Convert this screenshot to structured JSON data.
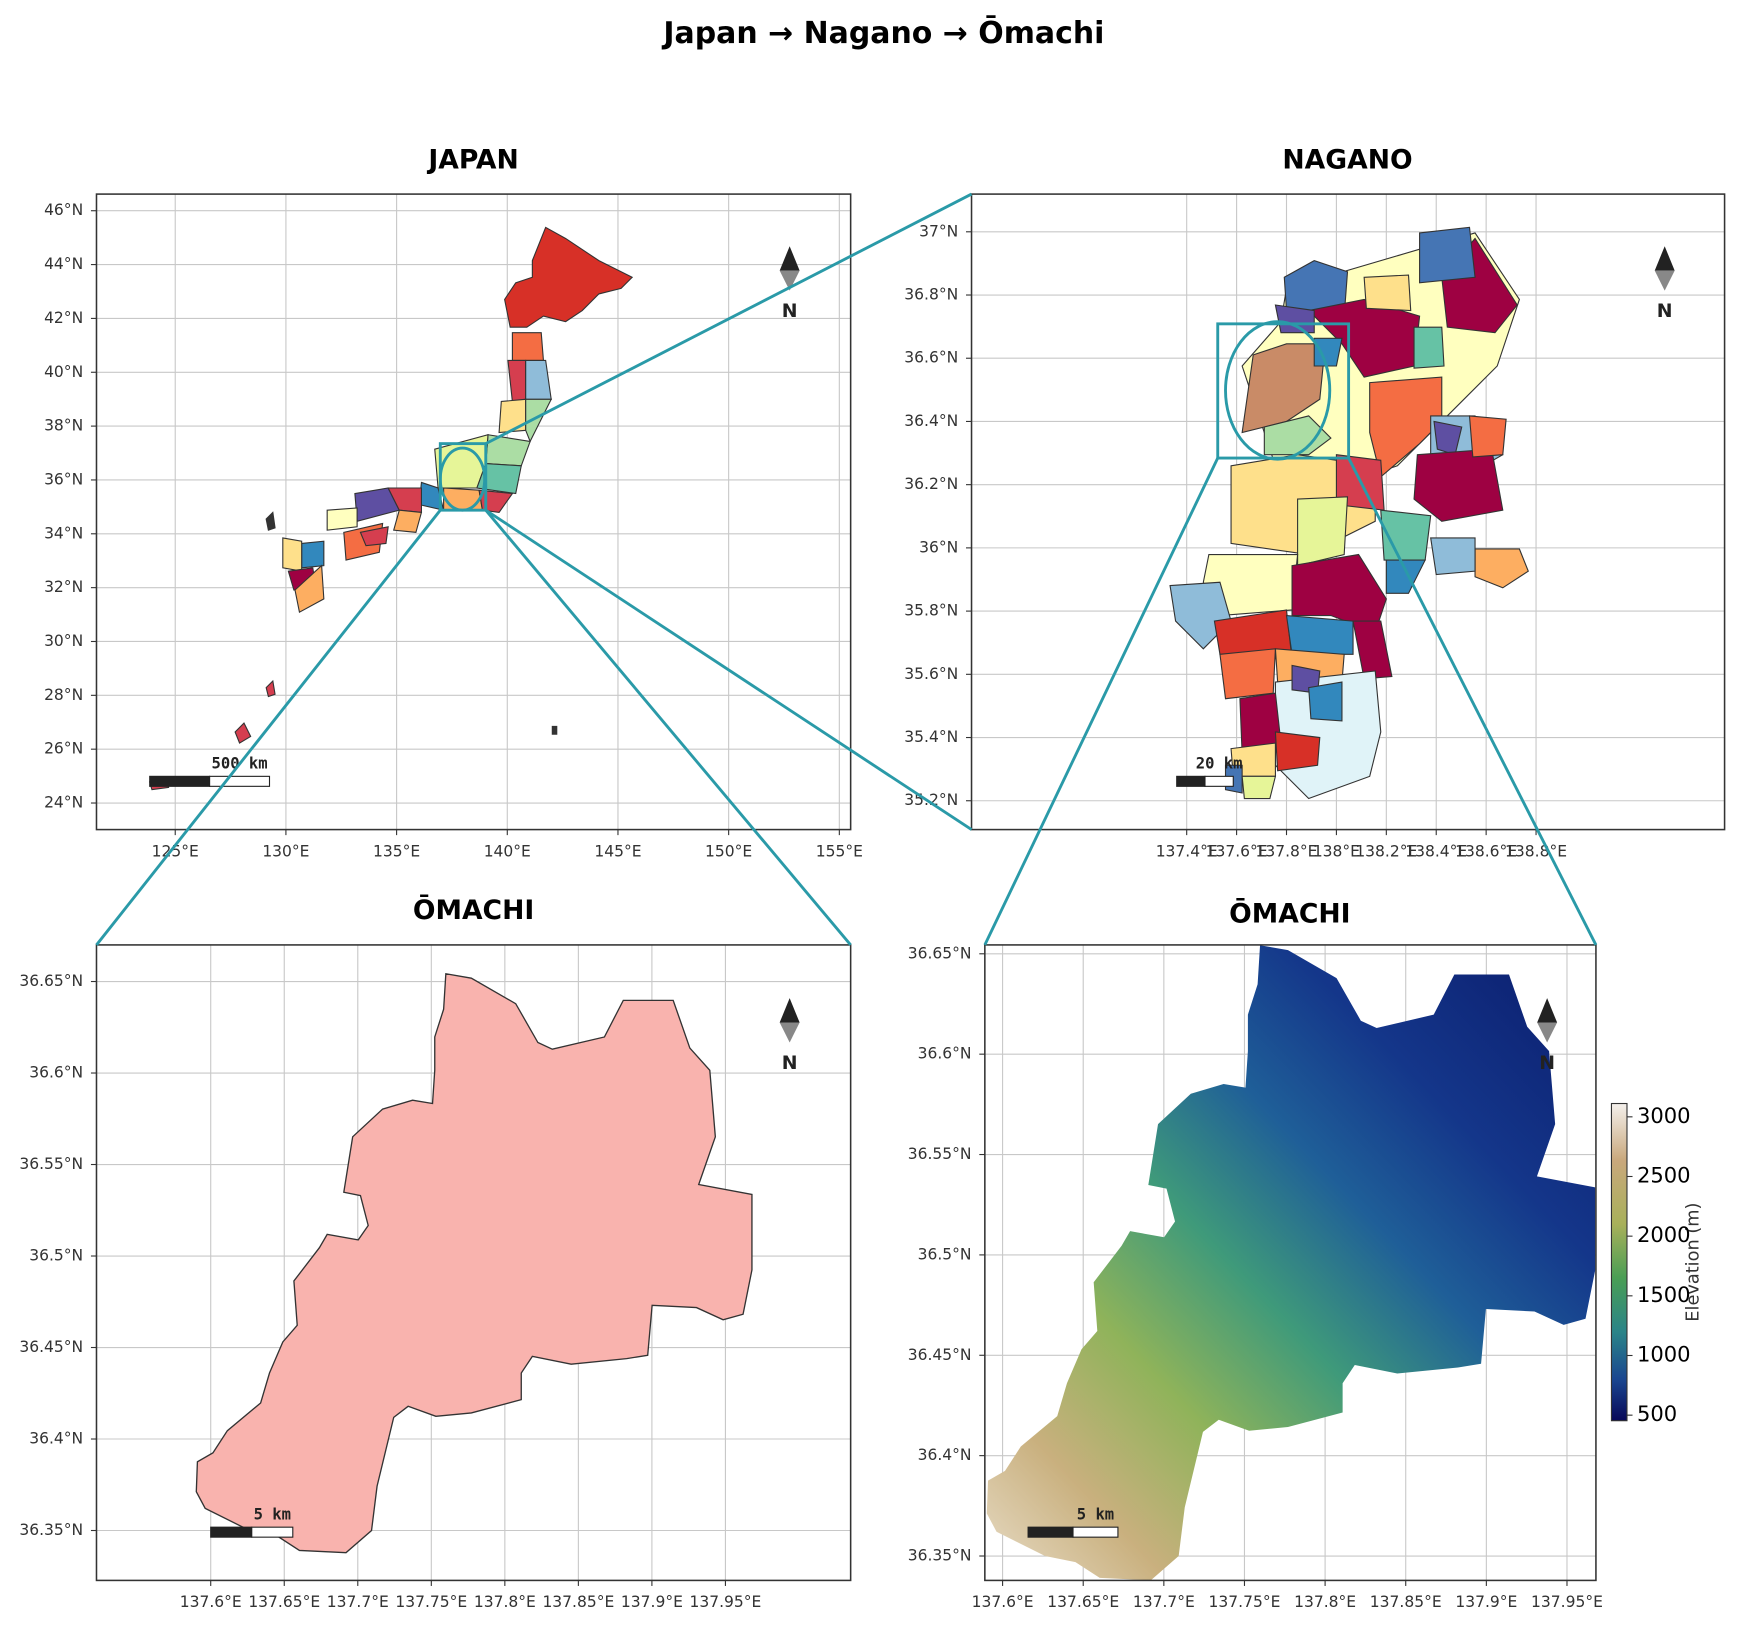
{
  "title": "Japan  →  Nagano  →  Ōmachi",
  "panels": [
    {
      "title": "JAPAN",
      "yticks": [
        "46°N",
        "44°N",
        "42°N",
        "40°N",
        "38°N",
        "36°N",
        "34°N",
        "32°N",
        "30°N",
        "28°N",
        "26°N",
        "24°N"
      ],
      "xticks": [
        "125°E",
        "130°E",
        "135°E",
        "140°E",
        "145°E",
        "150°E",
        "155°E"
      ],
      "scale_bar": "500 km",
      "north": "N"
    },
    {
      "title": "NAGANO",
      "yticks": [
        "37°N",
        "36.8°N",
        "36.6°N",
        "36.4°N",
        "36.2°N",
        "36°N",
        "35.8°N",
        "35.6°N",
        "35.4°N",
        "35.2°N"
      ],
      "xticks": [
        "137.4°E",
        "137.6°E",
        "137.8°E",
        "138°E",
        "138.2°E",
        "138.4°E",
        "138.6°E",
        "138.8°E"
      ],
      "scale_bar": "20 km",
      "north": "N"
    },
    {
      "title": "ŌMACHI",
      "yticks": [
        "36.65°N",
        "36.6°N",
        "36.55°N",
        "36.5°N",
        "36.45°N",
        "36.4°N",
        "36.35°N"
      ],
      "xticks": [
        "137.6°E",
        "137.65°E",
        "137.7°E",
        "137.75°E",
        "137.8°E",
        "137.85°E",
        "137.9°E",
        "137.95°E"
      ],
      "scale_bar": "5 km",
      "north": "N"
    },
    {
      "title": "ŌMACHI",
      "yticks": [
        "36.65°N",
        "36.6°N",
        "36.55°N",
        "36.5°N",
        "36.45°N",
        "36.4°N",
        "36.35°N"
      ],
      "xticks": [
        "137.6°E",
        "137.65°E",
        "137.7°E",
        "137.75°E",
        "137.8°E",
        "137.85°E",
        "137.9°E",
        "137.95°E"
      ],
      "scale_bar": "5 km",
      "north": "N"
    }
  ],
  "colorbar": {
    "label": "Elevation (m)",
    "ticks": [
      3000,
      2500,
      2000,
      1500,
      1000,
      500
    ]
  }
}
